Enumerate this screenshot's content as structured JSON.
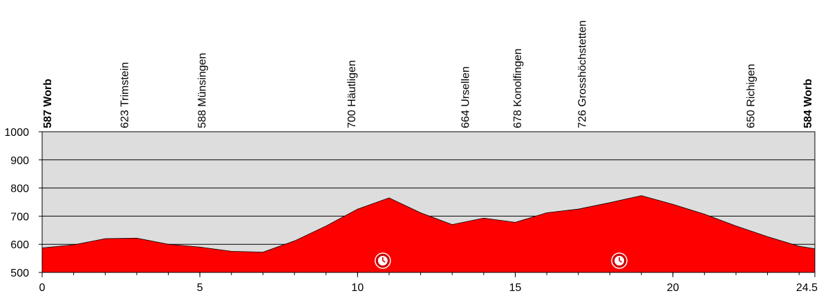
{
  "chart_data": {
    "type": "area",
    "colors": {
      "area": "#ff0000",
      "plot_bg": "#dddddd",
      "grid": "#000000",
      "clock_bg": "#d10000"
    },
    "xlim": [
      0,
      24.5
    ],
    "ylim": [
      500,
      1000
    ],
    "grid": true,
    "xticks": [
      0,
      5,
      10,
      15,
      20,
      24.5
    ],
    "xtick_labels": [
      "0",
      "5",
      "10",
      "15",
      "20",
      "24.5"
    ],
    "yticks": [
      500,
      600,
      700,
      800,
      900,
      1000
    ],
    "ytick_labels": [
      "500",
      "600",
      "700",
      "800",
      "900",
      "1000"
    ],
    "profile": {
      "x": [
        0,
        1,
        2,
        3,
        4,
        5,
        6,
        7,
        8,
        9,
        10,
        11,
        12,
        13,
        14,
        15,
        16,
        17,
        18,
        19,
        20,
        21,
        22,
        23,
        24,
        24.5
      ],
      "y": [
        587,
        598,
        620,
        622,
        600,
        590,
        575,
        572,
        612,
        665,
        725,
        765,
        712,
        670,
        693,
        678,
        712,
        725,
        748,
        773,
        742,
        707,
        665,
        627,
        593,
        584
      ]
    },
    "waypoints": [
      {
        "x": 0,
        "label": "587 Worb",
        "bold": true
      },
      {
        "x": 2.6,
        "label": "623 Trimstein",
        "bold": false
      },
      {
        "x": 5.05,
        "label": "588 Münsingen",
        "bold": false
      },
      {
        "x": 9.8,
        "label": "700 Häutligen",
        "bold": false
      },
      {
        "x": 13.4,
        "label": "664 Ursellen",
        "bold": false
      },
      {
        "x": 15.05,
        "label": "678 Konolfingen",
        "bold": false
      },
      {
        "x": 17.1,
        "label": "726 Grosshöchstetten",
        "bold": false
      },
      {
        "x": 22.45,
        "label": "650 Richigen",
        "bold": false
      },
      {
        "x": 24.5,
        "label": "584 Worb",
        "bold": true
      }
    ],
    "markers": [
      {
        "x": 10.8,
        "icon": "clock-icon"
      },
      {
        "x": 18.3,
        "icon": "clock-icon"
      }
    ]
  }
}
